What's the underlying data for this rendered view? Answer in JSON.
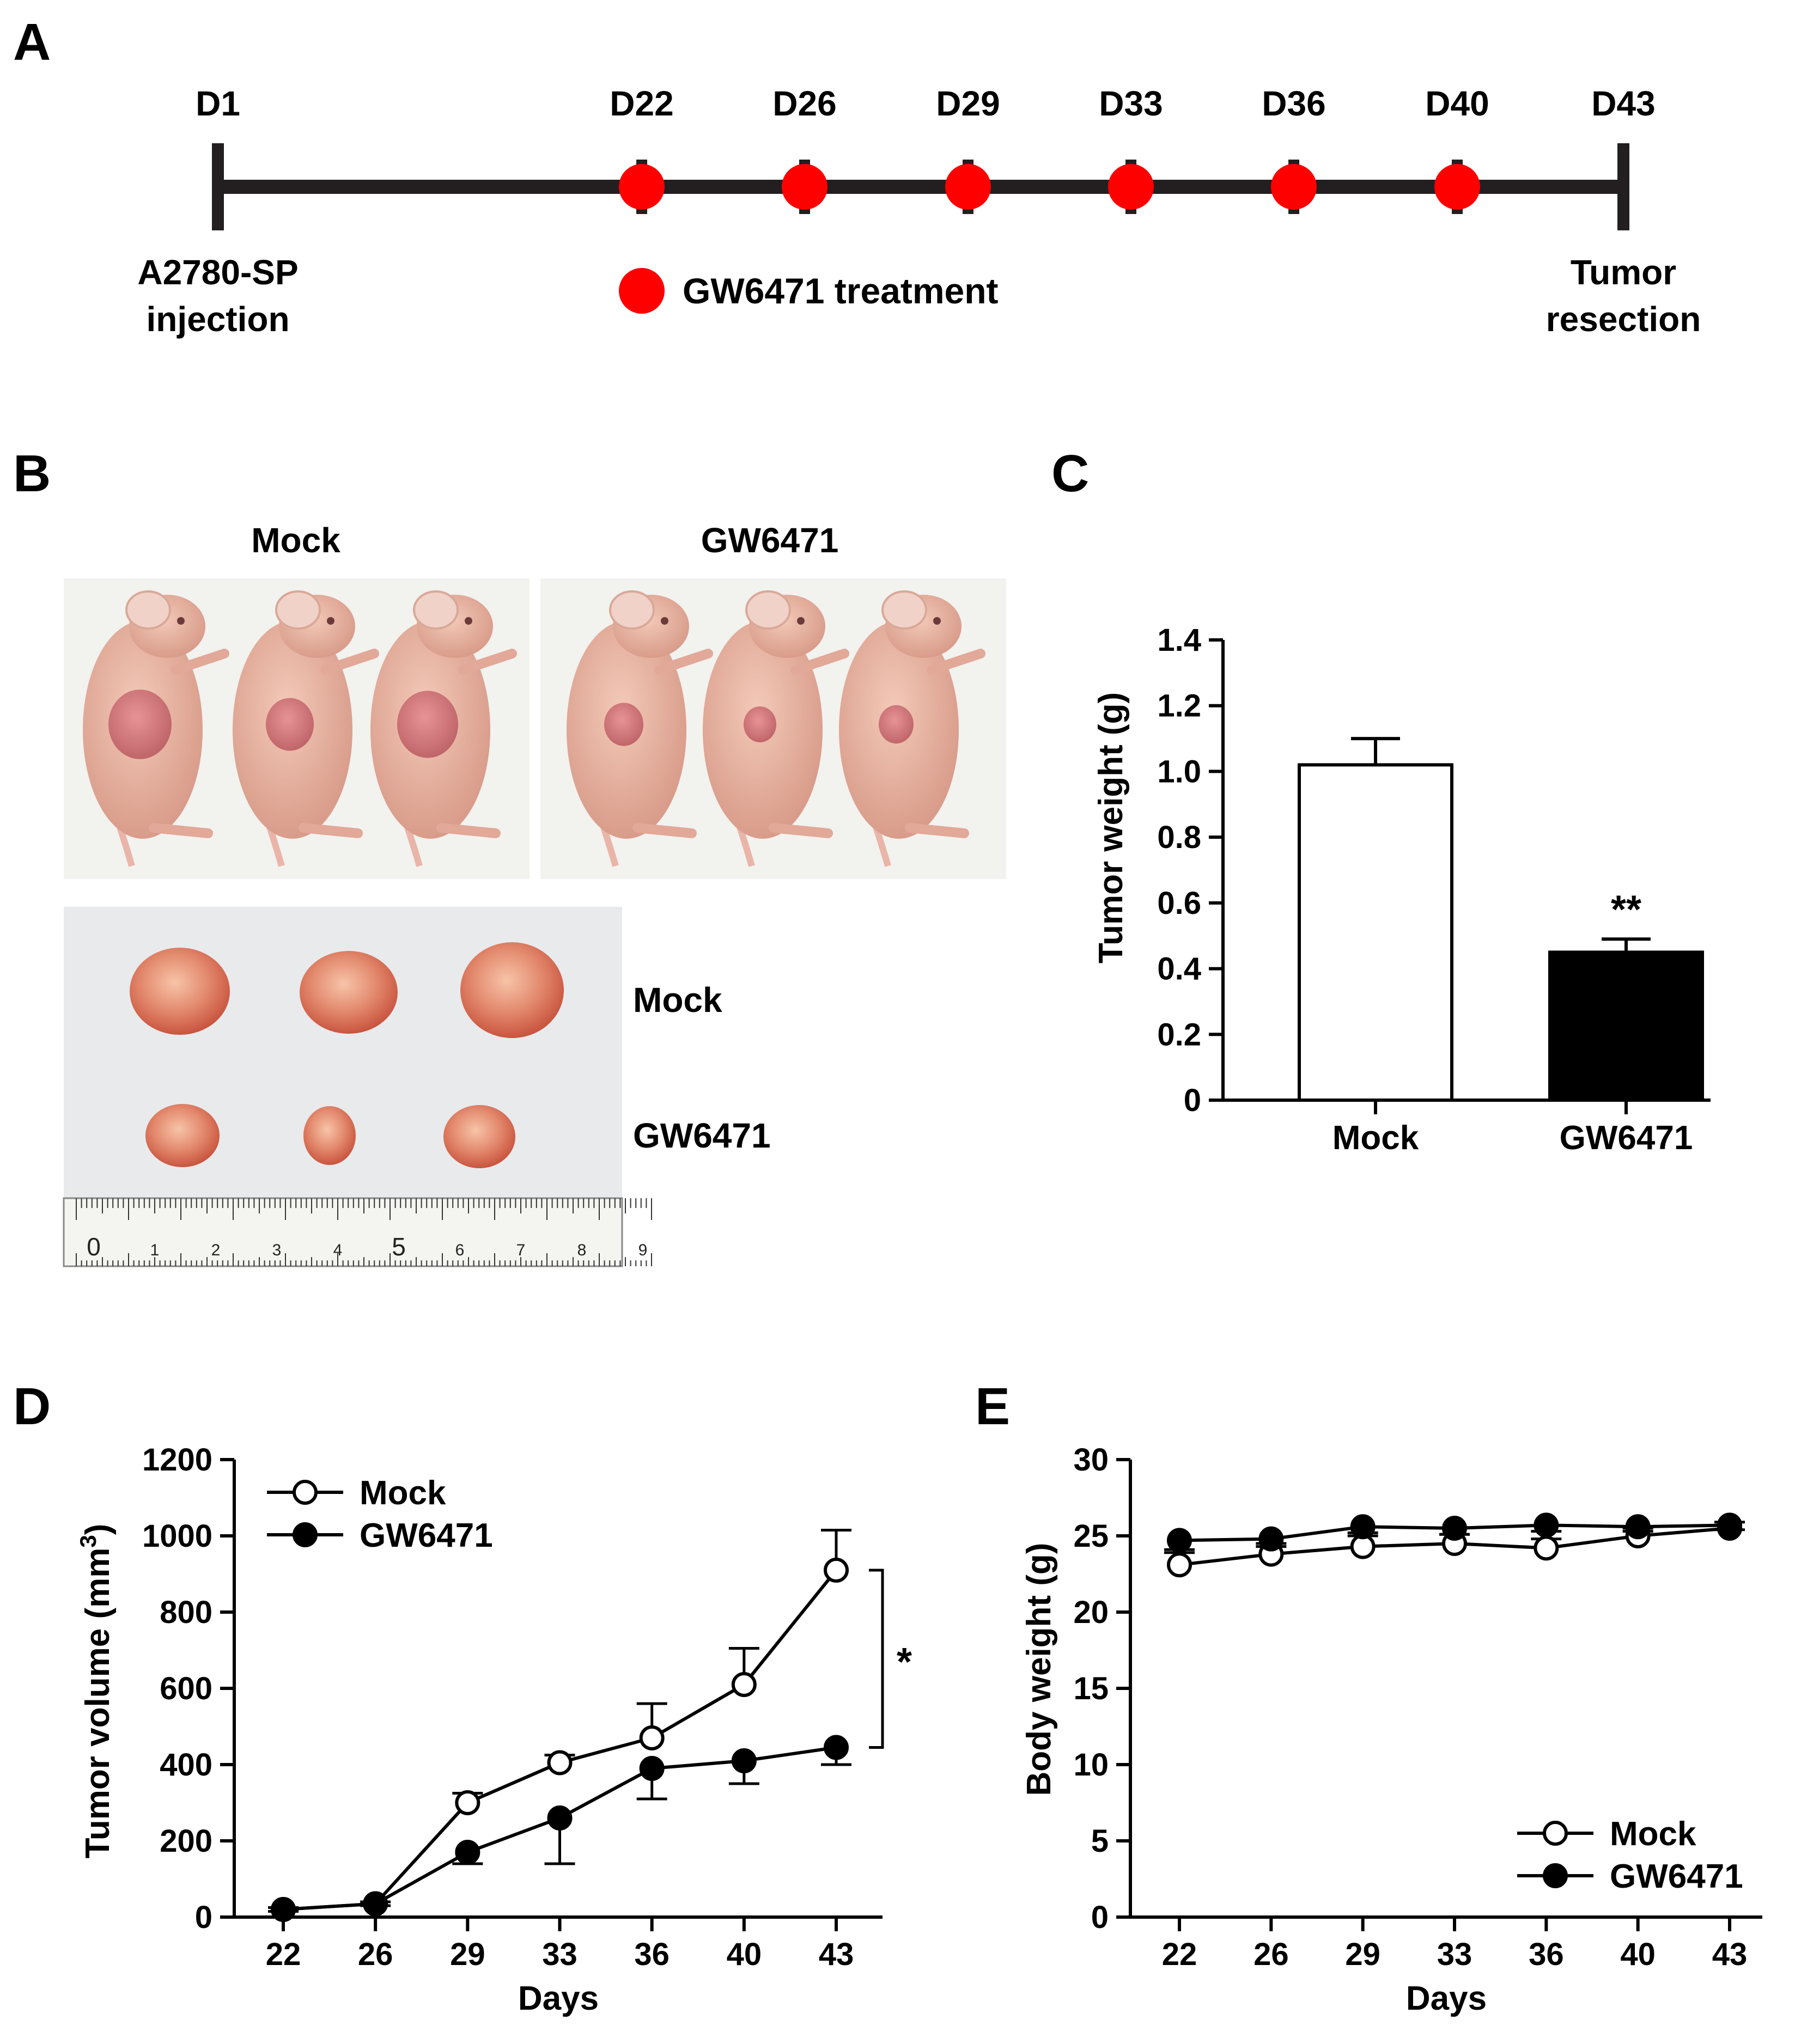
{
  "panel_labels": {
    "a": "A",
    "b": "B",
    "c": "C",
    "d": "D",
    "e": "E"
  },
  "timeline": {
    "day_labels": [
      "D1",
      "D22",
      "D26",
      "D29",
      "D33",
      "D36",
      "D40",
      "D43"
    ],
    "injection_label_line1": "A2780-SP",
    "injection_label_line2": "injection",
    "resection_label_line1": "Tumor",
    "resection_label_line2": "resection",
    "legend_label": "GW6471 treatment",
    "treatment_color": "#ff0000",
    "treatment_days": [
      "D22",
      "D26",
      "D29",
      "D33",
      "D36",
      "D40"
    ]
  },
  "photos": {
    "mice_label_mock": "Mock",
    "mice_label_gw": "GW6471",
    "tumor_label_mock": "Mock",
    "tumor_label_gw": "GW6471",
    "ruler_digits": [
      "0",
      "1",
      "2",
      "3",
      "4",
      "5",
      "6",
      "7",
      "8",
      "9"
    ],
    "mice_per_group": 3,
    "tumors_per_group": 3
  },
  "chart_data": [
    {
      "id": "C",
      "type": "bar",
      "title": "",
      "xlabel": "",
      "ylabel": "Tumor weight (g)",
      "categories": [
        "Mock",
        "GW6471"
      ],
      "values": [
        1.02,
        0.45
      ],
      "errors": [
        0.08,
        0.04
      ],
      "fills": [
        "#ffffff",
        "#000000"
      ],
      "ylim": [
        0,
        1.4
      ],
      "yticks": [
        "0",
        "0.2",
        "0.4",
        "0.6",
        "0.8",
        "1.0",
        "1.2",
        "1.4"
      ],
      "annotation": "**"
    },
    {
      "id": "D",
      "type": "line",
      "xlabel": "Days",
      "ylabel": "Tumor volume (mm",
      "ylabel_sup": "3",
      "ylabel_end": ")",
      "categories": [
        "22",
        "26",
        "29",
        "33",
        "36",
        "40",
        "43"
      ],
      "ylim": [
        0,
        1200
      ],
      "yticks": [
        "0",
        "200",
        "400",
        "600",
        "800",
        "1000",
        "1200"
      ],
      "series": [
        {
          "name": "Mock",
          "marker": "open",
          "values": [
            20,
            35,
            300,
            405,
            470,
            610,
            910
          ],
          "errors": [
            5,
            5,
            25,
            20,
            90,
            95,
            105
          ]
        },
        {
          "name": "GW6471",
          "marker": "filled",
          "values": [
            20,
            35,
            170,
            260,
            390,
            410,
            445
          ],
          "errors": [
            5,
            5,
            30,
            120,
            80,
            60,
            45
          ]
        }
      ],
      "legend": "top-left",
      "significance": "*"
    },
    {
      "id": "E",
      "type": "line",
      "xlabel": "Days",
      "ylabel": "Body weight (g)",
      "categories": [
        "22",
        "26",
        "29",
        "33",
        "36",
        "40",
        "43"
      ],
      "ylim": [
        0,
        30
      ],
      "yticks": [
        "0",
        "5",
        "10",
        "15",
        "20",
        "25",
        "30"
      ],
      "series": [
        {
          "name": "Mock",
          "marker": "open",
          "values": [
            23.1,
            23.8,
            24.3,
            24.5,
            24.2,
            25.0,
            25.5
          ],
          "errors": [
            0.8,
            0.7,
            0.7,
            0.6,
            0.6,
            0.5,
            0.4
          ]
        },
        {
          "name": "GW6471",
          "marker": "filled",
          "values": [
            24.7,
            24.8,
            25.6,
            25.5,
            25.7,
            25.6,
            25.7
          ],
          "errors": [
            0.6,
            0.5,
            0.4,
            0.4,
            0.4,
            0.3,
            0.3
          ]
        }
      ],
      "legend": "bottom-right"
    }
  ]
}
